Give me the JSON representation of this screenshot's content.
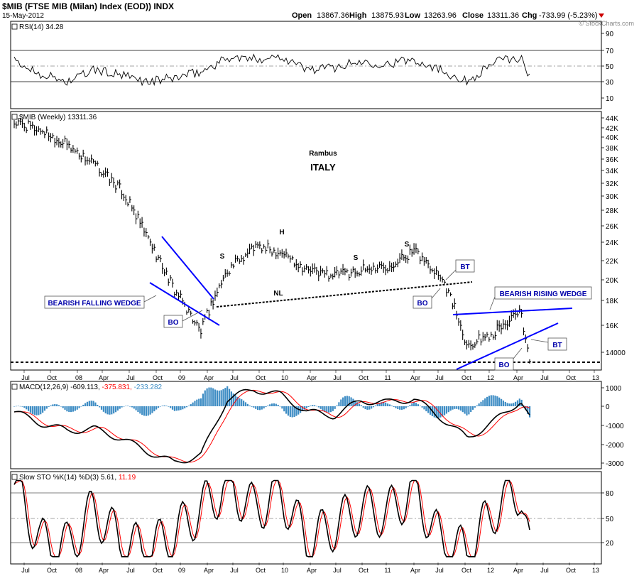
{
  "header": {
    "title": "$MIB (FTSE MIB (Milan) Index (EOD)) INDX",
    "date": "15-May-2012",
    "open_label": "Open",
    "open": "13867.36",
    "high_label": "High",
    "high": "13875.93",
    "low_label": "Low",
    "low": "13263.96",
    "close_label": "Close",
    "close": "13311.36",
    "chg_label": "Chg",
    "chg": "-733.99 (-5.23%)",
    "copyright": "© StockCharts.com",
    "down_color": "#cc0000"
  },
  "x_axis_labels": [
    "Jul",
    "Oct",
    "08",
    "Apr",
    "Jul",
    "Oct",
    "09",
    "Apr",
    "Jul",
    "Oct",
    "10",
    "Apr",
    "Jul",
    "Oct",
    "11",
    "Apr",
    "Jul",
    "Oct",
    "12",
    "Apr",
    "Jul",
    "Oct",
    "13"
  ],
  "panels": {
    "rsi": {
      "label": "RSI(14) 34.28",
      "ticks": [
        "90",
        "70",
        "50",
        "30",
        "10"
      ],
      "line_color": "#000000",
      "oversold_fill": "#b87c7c"
    },
    "price": {
      "label": "$MIB (Weekly) 13311.36",
      "ticks": [
        "44K",
        "42K",
        "40K",
        "38K",
        "36K",
        "34K",
        "32K",
        "30K",
        "28K",
        "26K",
        "24K",
        "22K",
        "20K",
        "18K",
        "16K",
        "14000"
      ],
      "annotations": {
        "author": "Rambus",
        "country": "ITALY",
        "hs_left": "S",
        "hs_head": "H",
        "hs_right": "S",
        "nl": "NL",
        "right_s": "S",
        "bearish_falling_wedge": "BEARISH FALLING WEDGE",
        "bearish_rising_wedge": "BEARISH RISING WEDGE",
        "bo1": "BO",
        "bo2": "BO",
        "bo3": "BO",
        "bt1": "BT",
        "bt2": "BT"
      },
      "trend_color": "#0000ff",
      "label_color": "#0000aa"
    },
    "macd": {
      "label": "MACD(12,26,9)",
      "v1": "-609.113,",
      "v2": "-375.831,",
      "v3": "-233.282",
      "ticks": [
        "1000",
        "0",
        "-1000",
        "-2000",
        "-3000"
      ],
      "signal_color": "#ff0000",
      "hist_color": "#3d8cc4",
      "v3_color": "#3d8cc4"
    },
    "sto": {
      "label": "Slow STO %K(14) %D(3)",
      "k": "5.61,",
      "d": "11.19",
      "ticks": [
        "80",
        "50",
        "20"
      ],
      "d_color": "#ff0000"
    }
  },
  "chart_data": {
    "type": "line",
    "title": "$MIB (FTSE MIB (Milan) Index (EOD)) INDX",
    "x": [
      "2007-07",
      "2007-10",
      "2008-01",
      "2008-04",
      "2008-07",
      "2008-10",
      "2009-01",
      "2009-04",
      "2009-07",
      "2009-10",
      "2010-01",
      "2010-04",
      "2010-07",
      "2010-10",
      "2011-01",
      "2011-04",
      "2011-07",
      "2011-10",
      "2012-01",
      "2012-04",
      "2012-05"
    ],
    "series": [
      {
        "name": "$MIB (Weekly)",
        "values": [
          43000,
          41500,
          38500,
          35000,
          31000,
          24500,
          19000,
          15500,
          21000,
          23500,
          23000,
          21000,
          20500,
          21000,
          21500,
          23000,
          20500,
          14500,
          15500,
          17000,
          13311
        ]
      },
      {
        "name": "RSI(14)",
        "values": [
          55,
          40,
          30,
          45,
          38,
          30,
          35,
          42,
          60,
          58,
          62,
          45,
          48,
          55,
          52,
          58,
          45,
          30,
          55,
          60,
          34.28
        ]
      },
      {
        "name": "MACD(12,26,9)",
        "values": [
          -300,
          -900,
          -1300,
          -1200,
          -1700,
          -2400,
          -3000,
          -2600,
          400,
          900,
          600,
          -300,
          -500,
          300,
          200,
          400,
          -600,
          -1700,
          -800,
          300,
          -609.113
        ]
      },
      {
        "name": "Slow STO %K(14)",
        "values": [
          90,
          20,
          15,
          60,
          20,
          10,
          30,
          60,
          90,
          60,
          80,
          20,
          40,
          60,
          55,
          85,
          20,
          8,
          60,
          85,
          5.61
        ]
      }
    ],
    "ylim": [
      13000,
      45000
    ],
    "grid": false
  }
}
